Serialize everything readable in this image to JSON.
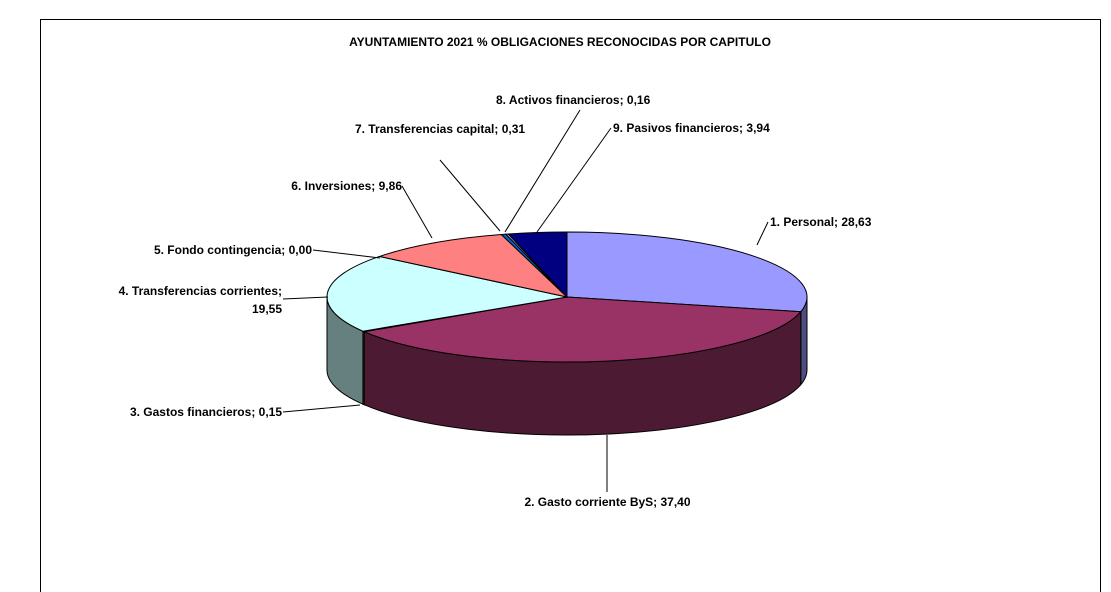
{
  "chart_data": {
    "type": "pie3d",
    "title": "AYUNTAMIENTO 2021 % OBLIGACIONES RECONOCIDAS POR CAPITULO",
    "values": [
      28.63,
      37.4,
      0.15,
      19.55,
      0.0,
      9.86,
      0.31,
      0.16,
      3.94
    ],
    "value_labels": [
      "1. Personal; 28,63",
      "2. Gasto corriente ByS; 37,40",
      "3. Gastos financieros; 0,15",
      "4. Transferencias corrientes; 19,55",
      "5. Fondo contingencia; 0,00",
      "6. Inversiones; 9,86",
      "7. Transferencias capital; 0,31",
      "8. Activos financieros; 0,16",
      "9. Pasivos financieros; 3,94"
    ],
    "colors": [
      "#9999ff",
      "#993366",
      "#ffffcc",
      "#ccffff",
      "#660066",
      "#ff8080",
      "#0066cc",
      "#ccccff",
      "#000080"
    ]
  }
}
